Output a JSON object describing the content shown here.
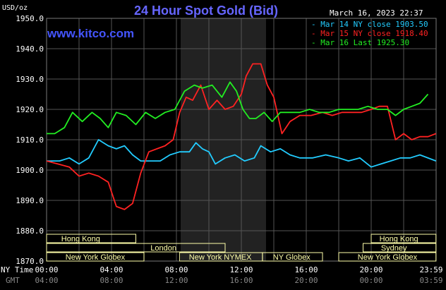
{
  "header": {
    "title": "24 Hour Spot Gold (Bid)",
    "unit": "USD/oz",
    "timestamp": "March 16, 2023 22:37",
    "site": "www.kitco.com"
  },
  "legend": [
    {
      "label": "Mar 14 NY close 1903.50",
      "color": "#22ccff"
    },
    {
      "label": "Mar 15 NY close 1918.40",
      "color": "#ff2222"
    },
    {
      "label": "Mar 16 Last 1925.30",
      "color": "#22ee22"
    }
  ],
  "markets": [
    {
      "label": "Hong Kong"
    },
    {
      "label": "London"
    },
    {
      "label": "New York Globex"
    },
    {
      "label": "New York NYMEX"
    },
    {
      "label": "NY Globex"
    },
    {
      "label": "Hong Kong"
    },
    {
      "label": "Sydney"
    },
    {
      "label": "New York Globex"
    }
  ],
  "time_axes": [
    {
      "name": "NY Time",
      "ticks": [
        "00:00",
        "04:00",
        "08:00",
        "12:00",
        "16:00",
        "20:00",
        "23:59"
      ]
    },
    {
      "name": "GMT",
      "ticks": [
        "04:00",
        "08:00",
        "12:00",
        "16:00",
        "20:00",
        "00:00",
        "03:59"
      ]
    }
  ],
  "colors": {
    "background": "#000000",
    "grid": "#555555",
    "shade": "#222222",
    "market_bar": "#ffffaa"
  },
  "chart_data": {
    "type": "line",
    "title": "24 Hour Spot Gold (Bid)",
    "ylabel": "USD/oz",
    "ylim": [
      1870,
      1950
    ],
    "xlim": [
      0,
      24
    ],
    "yticks": [
      "1950.0",
      "1940.0",
      "1930.0",
      "1920.0",
      "1910.0",
      "1900.0",
      "1890.0",
      "1880.0",
      "1870.0"
    ],
    "shaded_hours": [
      8,
      13.5
    ],
    "series": [
      {
        "name": "Mar 14 NY close 1903.50",
        "color": "#22ccff",
        "x": [
          0,
          0.8,
          1.4,
          2.0,
          2.6,
          3.2,
          3.8,
          4.3,
          4.8,
          5.3,
          5.8,
          6.4,
          7.0,
          7.6,
          8.2,
          8.8,
          9.2,
          9.6,
          10.0,
          10.4,
          11.0,
          11.6,
          12.2,
          12.8,
          13.2,
          13.8,
          14.4,
          15.0,
          15.6,
          16.4,
          17.2,
          18.0,
          18.6,
          19.3,
          20.0,
          20.6,
          21.2,
          21.8,
          22.4,
          23.0,
          23.99
        ],
        "y": [
          1903,
          1903,
          1904,
          1902,
          1904,
          1910,
          1908,
          1907,
          1908,
          1905,
          1903,
          1903,
          1903,
          1905,
          1906,
          1906,
          1909,
          1907,
          1906,
          1902,
          1904,
          1905,
          1903,
          1904,
          1908,
          1906,
          1907,
          1905,
          1904,
          1904,
          1905,
          1904,
          1903,
          1904,
          1901,
          1902,
          1903,
          1904,
          1904,
          1905,
          1903
        ]
      },
      {
        "name": "Mar 15 NY close 1918.40",
        "color": "#ff2222",
        "x": [
          0,
          0.7,
          1.4,
          2.0,
          2.6,
          3.2,
          3.8,
          4.3,
          4.8,
          5.3,
          5.8,
          6.3,
          6.8,
          7.3,
          7.8,
          8.2,
          8.6,
          9.0,
          9.5,
          10.0,
          10.5,
          11.0,
          11.5,
          12.0,
          12.3,
          12.7,
          13.2,
          13.6,
          14.0,
          14.5,
          15.0,
          15.6,
          16.3,
          17.0,
          17.6,
          18.2,
          18.8,
          19.4,
          20.0,
          20.5,
          21.0,
          21.5,
          22.0,
          22.5,
          23.0,
          23.5,
          23.99
        ],
        "y": [
          1903,
          1902,
          1901,
          1898,
          1899,
          1898,
          1896,
          1888,
          1887,
          1889,
          1899,
          1906,
          1907,
          1908,
          1910,
          1919,
          1924,
          1923,
          1928,
          1920,
          1923,
          1920,
          1921,
          1925,
          1931,
          1935,
          1935,
          1928,
          1924,
          1912,
          1916,
          1918,
          1918,
          1919,
          1918,
          1919,
          1919,
          1919,
          1920,
          1921,
          1921,
          1910,
          1912,
          1910,
          1911,
          1911,
          1912
        ]
      },
      {
        "name": "Mar 16 Last 1925.30",
        "color": "#22ee22",
        "x": [
          0,
          0.5,
          1.1,
          1.6,
          2.2,
          2.8,
          3.3,
          3.8,
          4.3,
          4.9,
          5.5,
          6.1,
          6.7,
          7.3,
          7.9,
          8.5,
          9.1,
          9.6,
          10.2,
          10.8,
          11.3,
          11.7,
          12.1,
          12.5,
          12.9,
          13.4,
          13.9,
          14.4,
          15.0,
          15.6,
          16.2,
          16.8,
          17.4,
          18.0,
          18.6,
          19.2,
          19.8,
          20.4,
          21.0,
          21.5,
          22.0,
          22.5,
          23.0,
          23.5
        ],
        "y": [
          1912,
          1912,
          1914,
          1919,
          1916,
          1919,
          1917,
          1914,
          1919,
          1918,
          1915,
          1919,
          1917,
          1919,
          1920,
          1926,
          1928,
          1927,
          1928,
          1924,
          1929,
          1926,
          1920,
          1917,
          1917,
          1919,
          1916,
          1919,
          1919,
          1919,
          1920,
          1919,
          1919,
          1920,
          1920,
          1920,
          1921,
          1920,
          1920,
          1918,
          1920,
          1921,
          1922,
          1925
        ]
      }
    ]
  }
}
